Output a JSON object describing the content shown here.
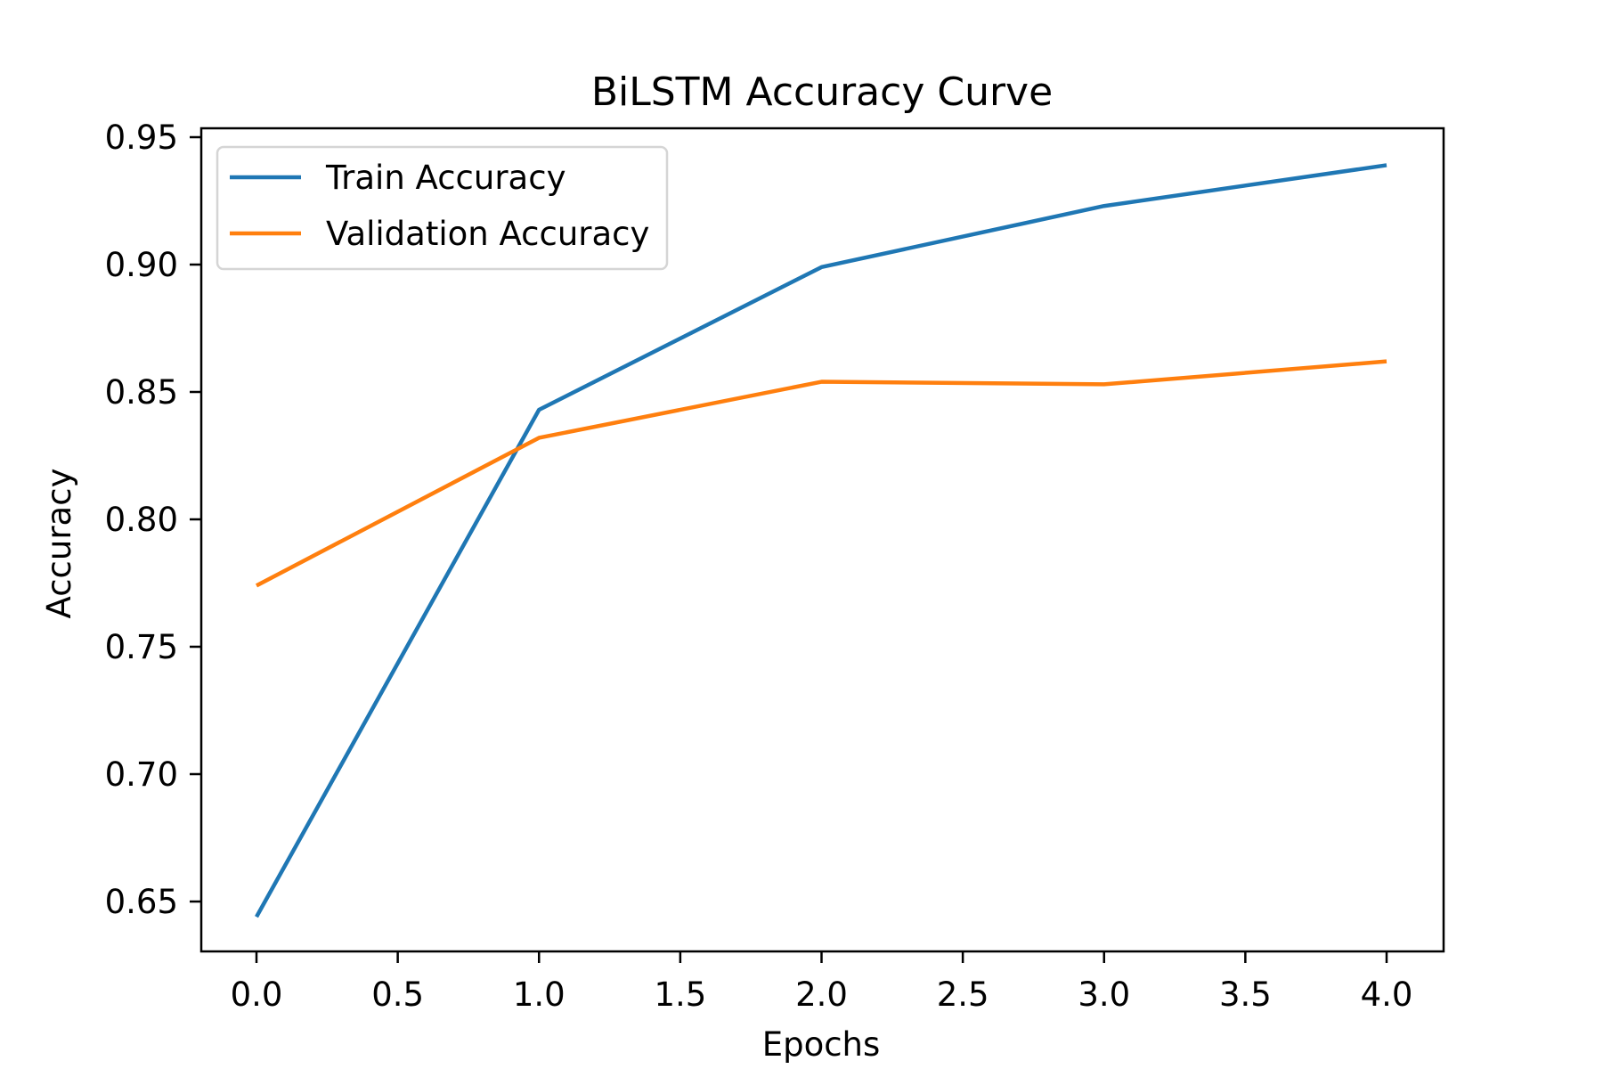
{
  "chart_data": {
    "type": "line",
    "title": "BiLSTM Accuracy Curve",
    "xlabel": "Epochs",
    "ylabel": "Accuracy",
    "x": [
      0,
      1,
      2,
      3,
      4
    ],
    "series": [
      {
        "name": "Train Accuracy",
        "color": "#1f77b4",
        "values": [
          0.644,
          0.843,
          0.899,
          0.923,
          0.939
        ]
      },
      {
        "name": "Validation Accuracy",
        "color": "#ff7f0e",
        "values": [
          0.774,
          0.832,
          0.854,
          0.853,
          0.862
        ]
      }
    ],
    "xlim": [
      -0.2,
      4.2
    ],
    "ylim": [
      0.631,
      0.954
    ],
    "xticks": [
      "0.0",
      "0.5",
      "1.0",
      "1.5",
      "2.0",
      "2.5",
      "3.0",
      "3.5",
      "4.0"
    ],
    "yticks": [
      "0.65",
      "0.70",
      "0.75",
      "0.80",
      "0.85",
      "0.90",
      "0.95"
    ],
    "grid": false,
    "legend_position": "upper left"
  }
}
